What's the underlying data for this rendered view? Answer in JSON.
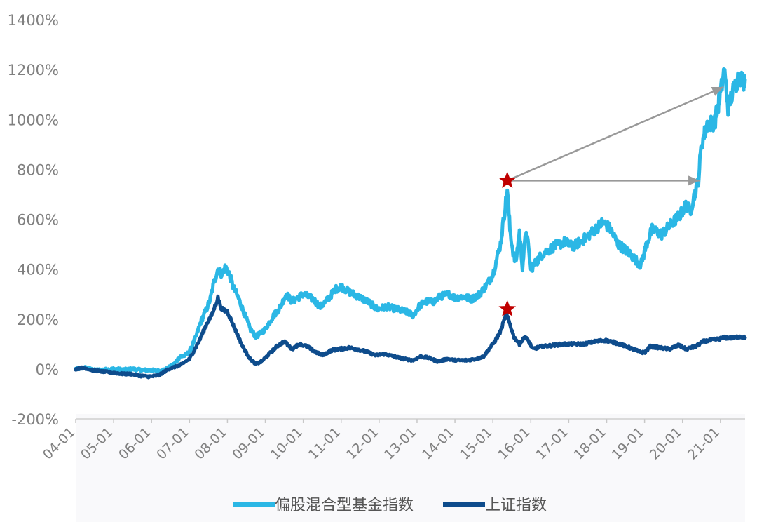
{
  "chart_data": {
    "type": "line",
    "title": "",
    "xlabel": "",
    "ylabel": "",
    "ylim": [
      -200,
      1400
    ],
    "y_ticks": [
      -200,
      0,
      200,
      400,
      600,
      800,
      1000,
      1200,
      1400
    ],
    "y_tick_labels": [
      "-200%",
      "0%",
      "200%",
      "400%",
      "600%",
      "800%",
      "1000%",
      "1200%",
      "1400%"
    ],
    "x_range": [
      2004.0,
      2021.65
    ],
    "x_tick_values": [
      2004,
      2005,
      2006,
      2007,
      2008,
      2009,
      2010,
      2011,
      2012,
      2013,
      2014,
      2015,
      2016,
      2017,
      2018,
      2019,
      2020,
      2021
    ],
    "x_tick_labels": [
      "04-01",
      "05-01",
      "06-01",
      "07-01",
      "08-01",
      "09-01",
      "10-01",
      "11-01",
      "12-01",
      "13-01",
      "14-01",
      "15-01",
      "16-01",
      "17-01",
      "18-01",
      "19-01",
      "20-01",
      "21-01"
    ],
    "legend_position": "bottom",
    "grid": false,
    "series": [
      {
        "name": "偏股混合型基金指数",
        "color": "#2bb7e5",
        "points": [
          [
            2004.0,
            0
          ],
          [
            2004.25,
            5
          ],
          [
            2004.5,
            -5
          ],
          [
            2004.75,
            -3
          ],
          [
            2005.0,
            0
          ],
          [
            2005.3,
            -3
          ],
          [
            2005.5,
            0
          ],
          [
            2005.75,
            -5
          ],
          [
            2006.0,
            -5
          ],
          [
            2006.2,
            -8
          ],
          [
            2006.4,
            0
          ],
          [
            2006.6,
            20
          ],
          [
            2006.75,
            50
          ],
          [
            2006.9,
            55
          ],
          [
            2007.0,
            70
          ],
          [
            2007.15,
            120
          ],
          [
            2007.3,
            190
          ],
          [
            2007.45,
            240
          ],
          [
            2007.55,
            280
          ],
          [
            2007.65,
            350
          ],
          [
            2007.75,
            400
          ],
          [
            2007.85,
            380
          ],
          [
            2007.95,
            410
          ],
          [
            2008.05,
            380
          ],
          [
            2008.15,
            330
          ],
          [
            2008.3,
            280
          ],
          [
            2008.45,
            220
          ],
          [
            2008.6,
            160
          ],
          [
            2008.75,
            130
          ],
          [
            2008.85,
            140
          ],
          [
            2009.0,
            160
          ],
          [
            2009.2,
            210
          ],
          [
            2009.4,
            250
          ],
          [
            2009.55,
            300
          ],
          [
            2009.7,
            270
          ],
          [
            2009.9,
            290
          ],
          [
            2010.0,
            300
          ],
          [
            2010.25,
            280
          ],
          [
            2010.45,
            250
          ],
          [
            2010.6,
            270
          ],
          [
            2010.85,
            320
          ],
          [
            2011.0,
            330
          ],
          [
            2011.2,
            310
          ],
          [
            2011.45,
            290
          ],
          [
            2011.7,
            270
          ],
          [
            2011.95,
            240
          ],
          [
            2012.2,
            250
          ],
          [
            2012.45,
            240
          ],
          [
            2012.7,
            230
          ],
          [
            2012.9,
            215
          ],
          [
            2013.05,
            250
          ],
          [
            2013.2,
            270
          ],
          [
            2013.45,
            270
          ],
          [
            2013.6,
            290
          ],
          [
            2013.85,
            300
          ],
          [
            2014.0,
            285
          ],
          [
            2014.2,
            290
          ],
          [
            2014.45,
            280
          ],
          [
            2014.65,
            300
          ],
          [
            2014.85,
            340
          ],
          [
            2015.0,
            380
          ],
          [
            2015.1,
            440
          ],
          [
            2015.2,
            500
          ],
          [
            2015.3,
            620
          ],
          [
            2015.38,
            720
          ],
          [
            2015.45,
            560
          ],
          [
            2015.52,
            480
          ],
          [
            2015.6,
            420
          ],
          [
            2015.7,
            550
          ],
          [
            2015.78,
            410
          ],
          [
            2015.88,
            560
          ],
          [
            2016.0,
            400
          ],
          [
            2016.1,
            420
          ],
          [
            2016.3,
            460
          ],
          [
            2016.6,
            490
          ],
          [
            2016.9,
            510
          ],
          [
            2017.1,
            490
          ],
          [
            2017.4,
            520
          ],
          [
            2017.7,
            560
          ],
          [
            2017.9,
            590
          ],
          [
            2018.1,
            560
          ],
          [
            2018.3,
            500
          ],
          [
            2018.55,
            470
          ],
          [
            2018.75,
            440
          ],
          [
            2018.9,
            415
          ],
          [
            2019.05,
            500
          ],
          [
            2019.2,
            560
          ],
          [
            2019.45,
            540
          ],
          [
            2019.7,
            580
          ],
          [
            2019.95,
            620
          ],
          [
            2020.1,
            660
          ],
          [
            2020.2,
            630
          ],
          [
            2020.3,
            690
          ],
          [
            2020.42,
            760
          ],
          [
            2020.5,
            900
          ],
          [
            2020.65,
            980
          ],
          [
            2020.85,
            990
          ],
          [
            2021.0,
            1100
          ],
          [
            2021.1,
            1200
          ],
          [
            2021.2,
            1050
          ],
          [
            2021.35,
            1120
          ],
          [
            2021.5,
            1180
          ],
          [
            2021.6,
            1150
          ],
          [
            2021.65,
            1160
          ]
        ]
      },
      {
        "name": "上证指数",
        "color": "#0e4c8c",
        "points": [
          [
            2004.0,
            0
          ],
          [
            2004.2,
            5
          ],
          [
            2004.45,
            -5
          ],
          [
            2004.7,
            -10
          ],
          [
            2005.0,
            -15
          ],
          [
            2005.25,
            -20
          ],
          [
            2005.45,
            -20
          ],
          [
            2005.6,
            -25
          ],
          [
            2005.85,
            -30
          ],
          [
            2006.0,
            -30
          ],
          [
            2006.2,
            -25
          ],
          [
            2006.45,
            0
          ],
          [
            2006.75,
            15
          ],
          [
            2007.0,
            40
          ],
          [
            2007.25,
            110
          ],
          [
            2007.45,
            180
          ],
          [
            2007.6,
            220
          ],
          [
            2007.75,
            285
          ],
          [
            2007.85,
            240
          ],
          [
            2008.0,
            230
          ],
          [
            2008.2,
            160
          ],
          [
            2008.4,
            90
          ],
          [
            2008.6,
            40
          ],
          [
            2008.75,
            20
          ],
          [
            2008.9,
            30
          ],
          [
            2009.1,
            60
          ],
          [
            2009.3,
            90
          ],
          [
            2009.5,
            110
          ],
          [
            2009.7,
            80
          ],
          [
            2009.9,
            100
          ],
          [
            2010.1,
            90
          ],
          [
            2010.3,
            70
          ],
          [
            2010.5,
            55
          ],
          [
            2010.75,
            75
          ],
          [
            2010.95,
            80
          ],
          [
            2011.2,
            85
          ],
          [
            2011.4,
            80
          ],
          [
            2011.65,
            70
          ],
          [
            2011.9,
            55
          ],
          [
            2012.15,
            60
          ],
          [
            2012.4,
            50
          ],
          [
            2012.65,
            40
          ],
          [
            2012.9,
            35
          ],
          [
            2013.1,
            50
          ],
          [
            2013.3,
            45
          ],
          [
            2013.55,
            30
          ],
          [
            2013.8,
            40
          ],
          [
            2014.0,
            35
          ],
          [
            2014.3,
            35
          ],
          [
            2014.55,
            40
          ],
          [
            2014.75,
            50
          ],
          [
            2014.9,
            80
          ],
          [
            2015.05,
            110
          ],
          [
            2015.2,
            150
          ],
          [
            2015.35,
            220
          ],
          [
            2015.45,
            180
          ],
          [
            2015.55,
            130
          ],
          [
            2015.7,
            100
          ],
          [
            2015.85,
            130
          ],
          [
            2015.95,
            110
          ],
          [
            2016.05,
            80
          ],
          [
            2016.3,
            90
          ],
          [
            2016.6,
            95
          ],
          [
            2016.9,
            100
          ],
          [
            2017.15,
            100
          ],
          [
            2017.4,
            100
          ],
          [
            2017.7,
            110
          ],
          [
            2017.95,
            115
          ],
          [
            2018.1,
            110
          ],
          [
            2018.35,
            100
          ],
          [
            2018.6,
            85
          ],
          [
            2018.85,
            70
          ],
          [
            2019.0,
            65
          ],
          [
            2019.15,
            90
          ],
          [
            2019.4,
            85
          ],
          [
            2019.65,
            80
          ],
          [
            2019.9,
            95
          ],
          [
            2020.1,
            80
          ],
          [
            2020.35,
            90
          ],
          [
            2020.55,
            110
          ],
          [
            2020.75,
            115
          ],
          [
            2020.95,
            120
          ],
          [
            2021.1,
            125
          ],
          [
            2021.35,
            125
          ],
          [
            2021.5,
            130
          ],
          [
            2021.65,
            125
          ]
        ]
      }
    ],
    "markers": [
      {
        "shape": "star",
        "color": "#c00000",
        "x": 2015.38,
        "y": 755
      },
      {
        "shape": "star",
        "color": "#c00000",
        "x": 2015.38,
        "y": 240
      }
    ],
    "arrows": [
      {
        "color": "#999999",
        "from": [
          2015.38,
          755
        ],
        "to": [
          2021.08,
          1130
        ]
      },
      {
        "color": "#999999",
        "from": [
          2015.38,
          755
        ],
        "to": [
          2020.45,
          755
        ]
      }
    ]
  }
}
